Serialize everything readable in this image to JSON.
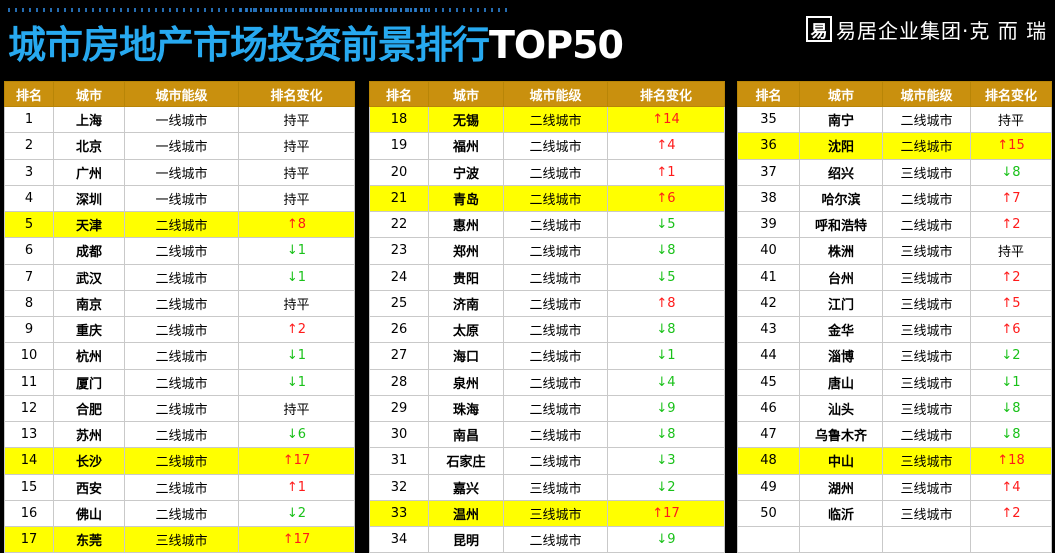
{
  "title": {
    "zh": "城市房地产市场投资前景排行",
    "en": "TOP50"
  },
  "brand": {
    "logo_char": "易",
    "name": "易居企业集团·克 而 瑞"
  },
  "table": {
    "headers": [
      "排名",
      "城市",
      "城市能级",
      "排名变化"
    ],
    "columns": [
      [
        {
          "rank": "1",
          "city": "上海",
          "tier": "一线城市",
          "change": "持平",
          "dir": "flat",
          "hl": false
        },
        {
          "rank": "2",
          "city": "北京",
          "tier": "一线城市",
          "change": "持平",
          "dir": "flat",
          "hl": false
        },
        {
          "rank": "3",
          "city": "广州",
          "tier": "一线城市",
          "change": "持平",
          "dir": "flat",
          "hl": false
        },
        {
          "rank": "4",
          "city": "深圳",
          "tier": "一线城市",
          "change": "持平",
          "dir": "flat",
          "hl": false
        },
        {
          "rank": "5",
          "city": "天津",
          "tier": "二线城市",
          "change": "↑8",
          "dir": "up",
          "hl": true
        },
        {
          "rank": "6",
          "city": "成都",
          "tier": "二线城市",
          "change": "↓1",
          "dir": "down",
          "hl": false
        },
        {
          "rank": "7",
          "city": "武汉",
          "tier": "二线城市",
          "change": "↓1",
          "dir": "down",
          "hl": false
        },
        {
          "rank": "8",
          "city": "南京",
          "tier": "二线城市",
          "change": "持平",
          "dir": "flat",
          "hl": false
        },
        {
          "rank": "9",
          "city": "重庆",
          "tier": "二线城市",
          "change": "↑2",
          "dir": "up",
          "hl": false
        },
        {
          "rank": "10",
          "city": "杭州",
          "tier": "二线城市",
          "change": "↓1",
          "dir": "down",
          "hl": false
        },
        {
          "rank": "11",
          "city": "厦门",
          "tier": "二线城市",
          "change": "↓1",
          "dir": "down",
          "hl": false
        },
        {
          "rank": "12",
          "city": "合肥",
          "tier": "二线城市",
          "change": "持平",
          "dir": "flat",
          "hl": false
        },
        {
          "rank": "13",
          "city": "苏州",
          "tier": "二线城市",
          "change": "↓6",
          "dir": "down",
          "hl": false
        },
        {
          "rank": "14",
          "city": "长沙",
          "tier": "二线城市",
          "change": "↑17",
          "dir": "up",
          "hl": true
        },
        {
          "rank": "15",
          "city": "西安",
          "tier": "二线城市",
          "change": "↑1",
          "dir": "up",
          "hl": false
        },
        {
          "rank": "16",
          "city": "佛山",
          "tier": "二线城市",
          "change": "↓2",
          "dir": "down",
          "hl": false
        },
        {
          "rank": "17",
          "city": "东莞",
          "tier": "三线城市",
          "change": "↑17",
          "dir": "up",
          "hl": true
        }
      ],
      [
        {
          "rank": "18",
          "city": "无锡",
          "tier": "二线城市",
          "change": "↑14",
          "dir": "up",
          "hl": true
        },
        {
          "rank": "19",
          "city": "福州",
          "tier": "二线城市",
          "change": "↑4",
          "dir": "up",
          "hl": false
        },
        {
          "rank": "20",
          "city": "宁波",
          "tier": "二线城市",
          "change": "↑1",
          "dir": "up",
          "hl": false
        },
        {
          "rank": "21",
          "city": "青岛",
          "tier": "二线城市",
          "change": "↑6",
          "dir": "up",
          "hl": true
        },
        {
          "rank": "22",
          "city": "惠州",
          "tier": "二线城市",
          "change": "↓5",
          "dir": "down",
          "hl": false
        },
        {
          "rank": "23",
          "city": "郑州",
          "tier": "二线城市",
          "change": "↓8",
          "dir": "down",
          "hl": false
        },
        {
          "rank": "24",
          "city": "贵阳",
          "tier": "二线城市",
          "change": "↓5",
          "dir": "down",
          "hl": false
        },
        {
          "rank": "25",
          "city": "济南",
          "tier": "二线城市",
          "change": "↑8",
          "dir": "up",
          "hl": false
        },
        {
          "rank": "26",
          "city": "太原",
          "tier": "二线城市",
          "change": "↓8",
          "dir": "down",
          "hl": false
        },
        {
          "rank": "27",
          "city": "海口",
          "tier": "二线城市",
          "change": "↓1",
          "dir": "down",
          "hl": false
        },
        {
          "rank": "28",
          "city": "泉州",
          "tier": "二线城市",
          "change": "↓4",
          "dir": "down",
          "hl": false
        },
        {
          "rank": "29",
          "city": "珠海",
          "tier": "二线城市",
          "change": "↓9",
          "dir": "down",
          "hl": false
        },
        {
          "rank": "30",
          "city": "南昌",
          "tier": "二线城市",
          "change": "↓8",
          "dir": "down",
          "hl": false
        },
        {
          "rank": "31",
          "city": "石家庄",
          "tier": "二线城市",
          "change": "↓3",
          "dir": "down",
          "hl": false
        },
        {
          "rank": "32",
          "city": "嘉兴",
          "tier": "三线城市",
          "change": "↓2",
          "dir": "down",
          "hl": false
        },
        {
          "rank": "33",
          "city": "温州",
          "tier": "三线城市",
          "change": "↑17",
          "dir": "up",
          "hl": true
        },
        {
          "rank": "34",
          "city": "昆明",
          "tier": "二线城市",
          "change": "↓9",
          "dir": "down",
          "hl": false
        }
      ],
      [
        {
          "rank": "35",
          "city": "南宁",
          "tier": "二线城市",
          "change": "持平",
          "dir": "flat",
          "hl": false
        },
        {
          "rank": "36",
          "city": "沈阳",
          "tier": "二线城市",
          "change": "↑15",
          "dir": "up",
          "hl": true
        },
        {
          "rank": "37",
          "city": "绍兴",
          "tier": "三线城市",
          "change": "↓8",
          "dir": "down",
          "hl": false
        },
        {
          "rank": "38",
          "city": "哈尔滨",
          "tier": "二线城市",
          "change": "↑7",
          "dir": "up",
          "hl": false
        },
        {
          "rank": "39",
          "city": "呼和浩特",
          "tier": "二线城市",
          "change": "↑2",
          "dir": "up",
          "hl": false
        },
        {
          "rank": "40",
          "city": "株洲",
          "tier": "三线城市",
          "change": "持平",
          "dir": "flat",
          "hl": false
        },
        {
          "rank": "41",
          "city": "台州",
          "tier": "三线城市",
          "change": "↑2",
          "dir": "up",
          "hl": false
        },
        {
          "rank": "42",
          "city": "江门",
          "tier": "三线城市",
          "change": "↑5",
          "dir": "up",
          "hl": false
        },
        {
          "rank": "43",
          "city": "金华",
          "tier": "三线城市",
          "change": "↑6",
          "dir": "up",
          "hl": false
        },
        {
          "rank": "44",
          "city": "淄博",
          "tier": "三线城市",
          "change": "↓2",
          "dir": "down",
          "hl": false
        },
        {
          "rank": "45",
          "city": "唐山",
          "tier": "三线城市",
          "change": "↓1",
          "dir": "down",
          "hl": false
        },
        {
          "rank": "46",
          "city": "汕头",
          "tier": "三线城市",
          "change": "↓8",
          "dir": "down",
          "hl": false
        },
        {
          "rank": "47",
          "city": "乌鲁木齐",
          "tier": "二线城市",
          "change": "↓8",
          "dir": "down",
          "hl": false
        },
        {
          "rank": "48",
          "city": "中山",
          "tier": "三线城市",
          "change": "↑18",
          "dir": "up",
          "hl": true
        },
        {
          "rank": "49",
          "city": "湖州",
          "tier": "三线城市",
          "change": "↑4",
          "dir": "up",
          "hl": false
        },
        {
          "rank": "50",
          "city": "临沂",
          "tier": "三线城市",
          "change": "↑2",
          "dir": "up",
          "hl": false
        },
        {
          "rank": "",
          "city": "",
          "tier": "",
          "change": "",
          "dir": "flat",
          "hl": false
        }
      ]
    ]
  }
}
